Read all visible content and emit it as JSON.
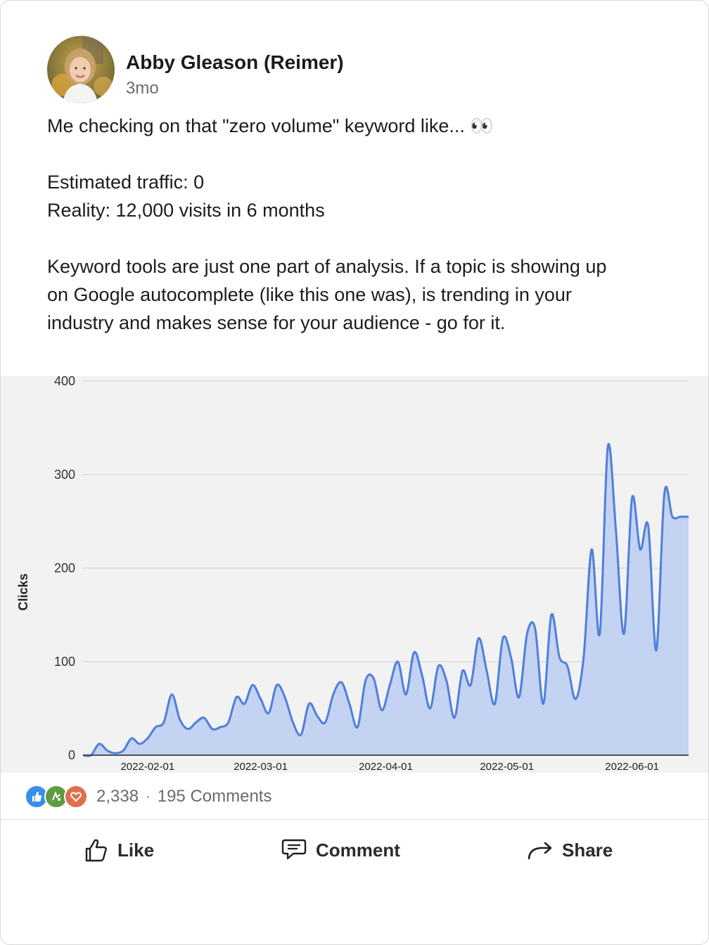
{
  "post": {
    "author": "Abby Gleason (Reimer)",
    "time": "3mo",
    "lines": [
      "Me checking on that \"zero volume\" keyword like... 👀",
      "",
      "Estimated traffic: 0",
      "Reality: 12,000 visits in 6 months",
      "",
      "Keyword tools are just one part of analysis. If a topic is showing up",
      "on Google autocomplete (like this one was), is trending in your",
      "industry and makes sense for your audience - go for it."
    ]
  },
  "chart_data": {
    "type": "area",
    "title": "",
    "xlabel": "",
    "ylabel": "Clicks",
    "ylim": [
      0,
      400
    ],
    "yticks": [
      0,
      100,
      200,
      300,
      400
    ],
    "xticks": [
      "2022-02-01",
      "2022-03-01",
      "2022-04-01",
      "2022-05-01",
      "2022-06-01"
    ],
    "grid": true,
    "colors": {
      "line": "#4f7fdc",
      "fill": "#c3d3f1",
      "background": "#f2f2f2",
      "grid": "#cfcfcf"
    },
    "series": [
      {
        "x": [
          "2022-01-16",
          "2022-01-18",
          "2022-01-20",
          "2022-01-22",
          "2022-01-24",
          "2022-01-26",
          "2022-01-28",
          "2022-01-30",
          "2022-02-01",
          "2022-02-03",
          "2022-02-05",
          "2022-02-07",
          "2022-02-09",
          "2022-02-11",
          "2022-02-13",
          "2022-02-15",
          "2022-02-17",
          "2022-02-19",
          "2022-02-21",
          "2022-02-23",
          "2022-02-25",
          "2022-02-27",
          "2022-03-01",
          "2022-03-03",
          "2022-03-05",
          "2022-03-07",
          "2022-03-09",
          "2022-03-11",
          "2022-03-13",
          "2022-03-15",
          "2022-03-17",
          "2022-03-19",
          "2022-03-21",
          "2022-03-23",
          "2022-03-25",
          "2022-03-27",
          "2022-03-29",
          "2022-03-31",
          "2022-04-02",
          "2022-04-04",
          "2022-04-06",
          "2022-04-08",
          "2022-04-10",
          "2022-04-12",
          "2022-04-14",
          "2022-04-16",
          "2022-04-18",
          "2022-04-20",
          "2022-04-22",
          "2022-04-24",
          "2022-04-26",
          "2022-04-28",
          "2022-04-30",
          "2022-05-02",
          "2022-05-04",
          "2022-05-06",
          "2022-05-08",
          "2022-05-10",
          "2022-05-12",
          "2022-05-14",
          "2022-05-16",
          "2022-05-18",
          "2022-05-20",
          "2022-05-22",
          "2022-05-24",
          "2022-05-26",
          "2022-05-28",
          "2022-05-30",
          "2022-06-01",
          "2022-06-03",
          "2022-06-05",
          "2022-06-07",
          "2022-06-09",
          "2022-06-11",
          "2022-06-13",
          "2022-06-15"
        ],
        "values": [
          0,
          0,
          12,
          5,
          2,
          5,
          18,
          12,
          18,
          30,
          35,
          65,
          38,
          28,
          35,
          40,
          28,
          30,
          35,
          62,
          55,
          75,
          60,
          45,
          75,
          62,
          35,
          22,
          55,
          42,
          35,
          65,
          78,
          55,
          30,
          80,
          82,
          48,
          75,
          100,
          65,
          110,
          85,
          50,
          95,
          80,
          40,
          90,
          75,
          125,
          90,
          55,
          125,
          105,
          62,
          130,
          135,
          55,
          150,
          105,
          95,
          60,
          105,
          220,
          130,
          330,
          240,
          130,
          275,
          220,
          245,
          112,
          280,
          255,
          255,
          255
        ]
      }
    ]
  },
  "social": {
    "reaction_count": "2,338",
    "separator": "·",
    "comments": "195 Comments",
    "reaction_icons": [
      "thumbs-up-icon",
      "celebrate-icon",
      "heart-icon"
    ],
    "reaction_colors": [
      "#378fe9",
      "#5f9b41",
      "#df704d"
    ]
  },
  "actions": {
    "like": "Like",
    "comment": "Comment",
    "share": "Share"
  }
}
